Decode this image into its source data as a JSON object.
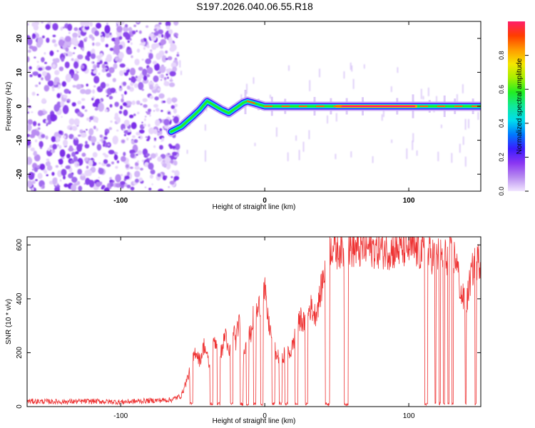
{
  "title": "S197.2026.040.06.55.R18",
  "chart_data": [
    {
      "type": "heatmap",
      "title": "S197.2026.040.06.55.R18",
      "xlabel": "Height of straight line (km)",
      "ylabel": "Frequency (Hz)",
      "xlim": [
        -165,
        150
      ],
      "ylim": [
        -25,
        25
      ],
      "x_ticks": [
        -100,
        0,
        100
      ],
      "y_ticks": [
        -20,
        -10,
        0,
        10,
        20
      ],
      "colorbar": {
        "label": "Normalized spectral amplitude",
        "range": [
          0,
          1
        ],
        "ticks": [
          0.0,
          0.2,
          0.4,
          0.6,
          0.8
        ],
        "tick_labels": [
          "0.0",
          "0.2",
          "0.4",
          "0.6",
          "0.8"
        ],
        "colors": [
          "#f2e6ff",
          "#b78af0",
          "#8a35f2",
          "#3a1cff",
          "#0078ff",
          "#00ddee",
          "#10e89a",
          "#22ee22",
          "#a6ee00",
          "#f5e600",
          "#ff9a00",
          "#ff3d00",
          "#ff1e6a"
        ]
      },
      "noise_region_x": [
        -165,
        -60
      ],
      "tone_track": {
        "x": [
          -65,
          -58,
          -50,
          -45,
          -40,
          -36,
          -30,
          -25,
          -20,
          -15,
          -12,
          -8,
          -4,
          0,
          40,
          150
        ],
        "y": [
          -7.5,
          -6,
          -3,
          -1,
          1.5,
          0.5,
          -1,
          -2,
          -0.5,
          1,
          1.5,
          1,
          0.5,
          0,
          0,
          0
        ]
      },
      "tone_peak_x_range": [
        50,
        105
      ]
    },
    {
      "type": "line",
      "xlabel": "Height of straight line (km)",
      "ylabel": "SNR (10 * v/v)",
      "xlim": [
        -165,
        150
      ],
      "ylim": [
        0,
        630
      ],
      "x_ticks": [
        -100,
        0,
        100
      ],
      "y_ticks": [
        0,
        200,
        400,
        600
      ],
      "color": "#ee3333",
      "series": [
        {
          "name": "SNR",
          "x": [
            -165,
            -140,
            -120,
            -100,
            -80,
            -65,
            -58,
            -52,
            -48,
            -45,
            -42,
            -38,
            -35,
            -30,
            -27,
            -25,
            -22,
            -20,
            -18,
            -15,
            -12,
            -10,
            -8,
            -6,
            -5,
            -3,
            0,
            2,
            4,
            8,
            12,
            15,
            18,
            22,
            25,
            28,
            30,
            32,
            35,
            38,
            40,
            42,
            43,
            45,
            47,
            50,
            52,
            55,
            60,
            65,
            70,
            80,
            90,
            100,
            105,
            110,
            115,
            120,
            125,
            130,
            133,
            136,
            140,
            143,
            145,
            148,
            150
          ],
          "y": [
            20,
            18,
            20,
            17,
            22,
            25,
            40,
            130,
            210,
            170,
            230,
            140,
            250,
            200,
            280,
            180,
            300,
            240,
            320,
            170,
            280,
            260,
            330,
            350,
            350,
            390,
            430,
            330,
            280,
            190,
            180,
            210,
            200,
            280,
            330,
            300,
            350,
            370,
            340,
            400,
            460,
            520,
            510,
            590,
            600,
            580,
            590,
            580,
            590,
            580,
            590,
            585,
            580,
            590,
            580,
            570,
            565,
            560,
            555,
            560,
            550,
            420,
            380,
            480,
            520,
            540,
            545
          ]
        }
      ],
      "dropouts_x": [
        [
          -52,
          -50
        ],
        [
          -38,
          -36
        ],
        [
          -33,
          -31
        ],
        [
          -24,
          -22
        ],
        [
          -17,
          -15
        ],
        [
          -13,
          -11
        ],
        [
          -8,
          -6
        ],
        [
          -3,
          -1
        ],
        [
          5,
          7
        ],
        [
          10,
          12
        ],
        [
          14,
          16
        ],
        [
          21,
          23
        ],
        [
          28,
          30
        ],
        [
          42,
          45
        ],
        [
          55,
          58
        ],
        [
          111,
          113
        ],
        [
          118,
          119
        ],
        [
          121,
          122
        ],
        [
          124,
          125
        ],
        [
          127,
          128
        ],
        [
          130,
          131
        ],
        [
          139,
          140
        ],
        [
          146,
          147
        ]
      ]
    }
  ]
}
